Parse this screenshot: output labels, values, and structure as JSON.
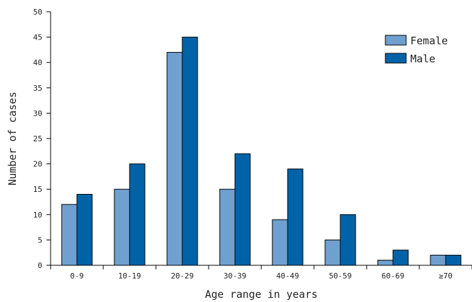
{
  "chart_data": {
    "type": "bar",
    "categories": [
      "0-9",
      "10-19",
      "20-29",
      "30-39",
      "40-49",
      "50-59",
      "60-69",
      "≥70"
    ],
    "series": [
      {
        "name": "Female",
        "values": [
          12,
          15,
          42,
          15,
          9,
          5,
          1,
          2
        ],
        "color": "#6fa0cf"
      },
      {
        "name": "Male",
        "values": [
          14,
          20,
          45,
          22,
          19,
          10,
          3,
          2
        ],
        "color": "#0063a8"
      }
    ],
    "title": "",
    "xlabel": "Age range in years",
    "ylabel": "Number of cases",
    "ylim": [
      0,
      50
    ],
    "yticks": [
      0,
      5,
      10,
      15,
      20,
      25,
      30,
      35,
      40,
      45,
      50
    ],
    "grid": false,
    "legend_position": "top-right"
  }
}
